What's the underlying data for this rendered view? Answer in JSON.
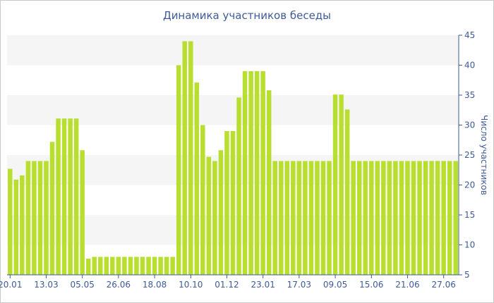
{
  "chart_data": {
    "type": "bar",
    "title": "Динамика участников беседы",
    "ylabel": "Число участников",
    "xlabel": "",
    "ylim": [
      5,
      45
    ],
    "yticks": [
      5,
      10,
      15,
      20,
      25,
      30,
      35,
      40,
      45
    ],
    "y_axis_position": "right",
    "grid": "alternating horizontal bands",
    "bar_color": "#b8df2f",
    "band_color": "#f5f5f5",
    "text_color": "#3e5a99",
    "x_tick_labels": [
      {
        "label": "20.01",
        "index": 0
      },
      {
        "label": "13.03",
        "index": 6
      },
      {
        "label": "05.05",
        "index": 12
      },
      {
        "label": "26.06",
        "index": 18
      },
      {
        "label": "18.08",
        "index": 24
      },
      {
        "label": "10.10",
        "index": 30
      },
      {
        "label": "01.12",
        "index": 36
      },
      {
        "label": "23.01",
        "index": 42
      },
      {
        "label": "17.03",
        "index": 48
      },
      {
        "label": "09.05",
        "index": 54
      },
      {
        "label": "15.06",
        "index": 60
      },
      {
        "label": "21.06",
        "index": 66
      },
      {
        "label": "27.06",
        "index": 72
      }
    ],
    "values": [
      22.7,
      20.9,
      21.6,
      24,
      24,
      24,
      24,
      27.2,
      31.1,
      31.1,
      31.1,
      31.1,
      25.8,
      7.7,
      8,
      8,
      8,
      8,
      8,
      8,
      8,
      8,
      8,
      8,
      8,
      8,
      8,
      8,
      40,
      44,
      44,
      37.1,
      30,
      24.7,
      24,
      25.8,
      29,
      29,
      34.6,
      39,
      39,
      39,
      39,
      35.8,
      24,
      24,
      24,
      24,
      24,
      24,
      24,
      24,
      24,
      24,
      35.1,
      35.1,
      32.6,
      24,
      24,
      24,
      24,
      24,
      24,
      24,
      24,
      24,
      24,
      24,
      24,
      24,
      24,
      24,
      24,
      24,
      24
    ]
  }
}
